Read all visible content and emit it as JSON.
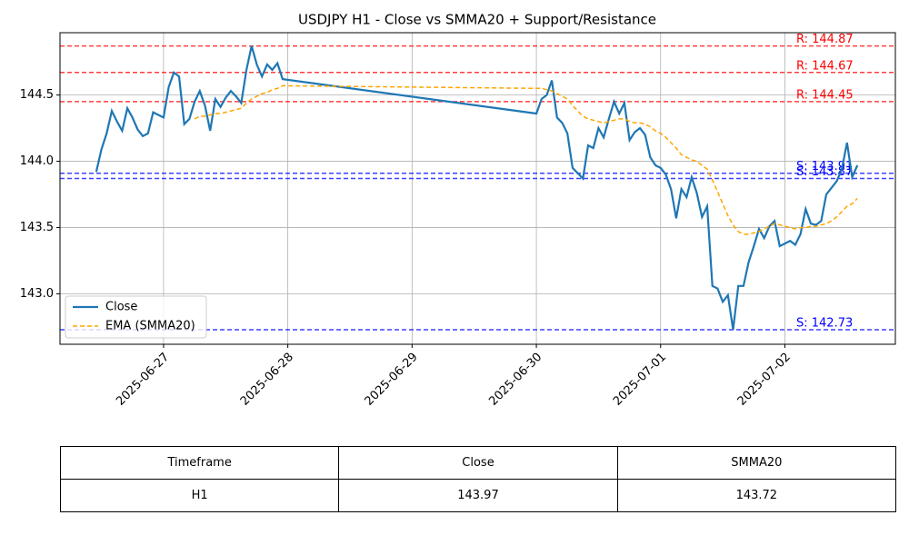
{
  "chart_data": {
    "type": "line",
    "title": "USDJPY H1 - Close vs SMMA20 + Support/Resistance",
    "x": [
      "2025-06-26T11:00",
      "2025-06-26T12:00",
      "2025-06-26T13:00",
      "2025-06-26T14:00",
      "2025-06-26T15:00",
      "2025-06-26T16:00",
      "2025-06-26T17:00",
      "2025-06-26T18:00",
      "2025-06-26T19:00",
      "2025-06-26T20:00",
      "2025-06-26T21:00",
      "2025-06-26T22:00",
      "2025-06-26T23:00",
      "2025-06-27T00:00",
      "2025-06-27T01:00",
      "2025-06-27T02:00",
      "2025-06-27T03:00",
      "2025-06-27T04:00",
      "2025-06-27T05:00",
      "2025-06-27T06:00",
      "2025-06-27T07:00",
      "2025-06-27T08:00",
      "2025-06-27T09:00",
      "2025-06-27T10:00",
      "2025-06-27T11:00",
      "2025-06-27T12:00",
      "2025-06-27T13:00",
      "2025-06-27T14:00",
      "2025-06-27T15:00",
      "2025-06-27T16:00",
      "2025-06-27T17:00",
      "2025-06-27T18:00",
      "2025-06-27T19:00",
      "2025-06-27T20:00",
      "2025-06-27T21:00",
      "2025-06-27T22:00",
      "2025-06-27T23:00",
      "2025-06-30T00:00",
      "2025-06-30T01:00",
      "2025-06-30T02:00",
      "2025-06-30T03:00",
      "2025-06-30T04:00",
      "2025-06-30T05:00",
      "2025-06-30T06:00",
      "2025-06-30T07:00",
      "2025-06-30T08:00",
      "2025-06-30T09:00",
      "2025-06-30T10:00",
      "2025-06-30T11:00",
      "2025-06-30T12:00",
      "2025-06-30T13:00",
      "2025-06-30T14:00",
      "2025-06-30T15:00",
      "2025-06-30T16:00",
      "2025-06-30T17:00",
      "2025-06-30T18:00",
      "2025-06-30T19:00",
      "2025-06-30T20:00",
      "2025-06-30T21:00",
      "2025-06-30T22:00",
      "2025-06-30T23:00",
      "2025-07-01T00:00",
      "2025-07-01T01:00",
      "2025-07-01T02:00",
      "2025-07-01T03:00",
      "2025-07-01T04:00",
      "2025-07-01T05:00",
      "2025-07-01T06:00",
      "2025-07-01T07:00",
      "2025-07-01T08:00",
      "2025-07-01T09:00",
      "2025-07-01T10:00",
      "2025-07-01T11:00",
      "2025-07-01T12:00",
      "2025-07-01T13:00",
      "2025-07-01T14:00",
      "2025-07-01T15:00",
      "2025-07-01T16:00",
      "2025-07-01T17:00",
      "2025-07-01T18:00",
      "2025-07-01T19:00",
      "2025-07-01T20:00",
      "2025-07-01T21:00",
      "2025-07-01T22:00",
      "2025-07-01T23:00",
      "2025-07-02T00:00",
      "2025-07-02T01:00",
      "2025-07-02T02:00",
      "2025-07-02T03:00",
      "2025-07-02T04:00",
      "2025-07-02T05:00",
      "2025-07-02T06:00",
      "2025-07-02T07:00",
      "2025-07-02T08:00",
      "2025-07-02T09:00",
      "2025-07-02T10:00",
      "2025-07-02T11:00",
      "2025-07-02T12:00",
      "2025-07-02T13:00",
      "2025-07-02T14:00"
    ],
    "series": [
      {
        "name": "Close",
        "color": "#1f77b4",
        "dash": false,
        "values": [
          143.92,
          144.09,
          144.21,
          144.38,
          144.3,
          144.23,
          144.4,
          144.33,
          144.24,
          144.19,
          144.21,
          144.37,
          144.35,
          144.33,
          144.56,
          144.67,
          144.64,
          144.28,
          144.32,
          144.45,
          144.53,
          144.42,
          144.23,
          144.47,
          144.41,
          144.48,
          144.53,
          144.49,
          144.44,
          144.69,
          144.87,
          144.73,
          144.64,
          144.73,
          144.69,
          144.74,
          144.62,
          144.36,
          144.47,
          144.5,
          144.61,
          144.33,
          144.29,
          144.21,
          143.95,
          143.91,
          143.87,
          144.12,
          144.1,
          144.25,
          144.18,
          144.32,
          144.45,
          144.36,
          144.44,
          144.16,
          144.22,
          144.25,
          144.2,
          144.03,
          143.97,
          143.95,
          143.9,
          143.79,
          143.57,
          143.79,
          143.73,
          143.88,
          143.76,
          143.58,
          143.66,
          143.06,
          143.04,
          142.94,
          142.99,
          142.73,
          143.06,
          143.06,
          143.24,
          143.36,
          143.49,
          143.42,
          143.51,
          143.55,
          143.36,
          143.38,
          143.4,
          143.37,
          143.45,
          143.64,
          143.53,
          143.52,
          143.55,
          143.75,
          143.8,
          143.85,
          143.94,
          144.14,
          143.88,
          143.97
        ]
      },
      {
        "name": "EMA (SMMA20)",
        "color": "#ffa500",
        "dash": true,
        "values": [
          null,
          null,
          null,
          null,
          null,
          null,
          null,
          null,
          null,
          null,
          null,
          null,
          null,
          null,
          null,
          null,
          null,
          null,
          null,
          144.32,
          144.34,
          144.34,
          144.35,
          144.36,
          144.36,
          144.37,
          144.38,
          144.39,
          144.4,
          144.44,
          144.47,
          144.49,
          144.51,
          144.52,
          144.54,
          144.55,
          144.57,
          144.55,
          144.55,
          144.54,
          144.53,
          144.51,
          144.49,
          144.47,
          144.42,
          144.38,
          144.34,
          144.32,
          144.31,
          144.3,
          144.29,
          144.3,
          144.31,
          144.32,
          144.32,
          144.3,
          144.29,
          144.29,
          144.28,
          144.26,
          144.23,
          144.21,
          144.18,
          144.14,
          144.1,
          144.05,
          144.03,
          144.01,
          144.0,
          143.97,
          143.94,
          143.86,
          143.77,
          143.68,
          143.59,
          143.52,
          143.47,
          143.45,
          143.45,
          143.46,
          143.47,
          143.49,
          143.51,
          143.53,
          143.52,
          143.51,
          143.5,
          143.49,
          143.5,
          143.5,
          143.51,
          143.51,
          143.52,
          143.53,
          143.55,
          143.58,
          143.62,
          143.66,
          143.68,
          143.72
        ]
      }
    ],
    "levels": [
      {
        "label": "R: 144.87",
        "value": 144.87,
        "color": "#ff0000"
      },
      {
        "label": "R: 144.67",
        "value": 144.67,
        "color": "#ff0000"
      },
      {
        "label": "R: 144.45",
        "value": 144.45,
        "color": "#ff0000"
      },
      {
        "label": "S: 143.91",
        "value": 143.91,
        "color": "#0000ff"
      },
      {
        "label": "S: 143.87",
        "value": 143.87,
        "color": "#0000ff"
      },
      {
        "label": "S: 142.73",
        "value": 142.73,
        "color": "#0000ff"
      }
    ],
    "xlim": [
      "2025-06-26T04:00",
      "2025-07-02T21:20"
    ],
    "xticks": [
      "2025-06-27",
      "2025-06-28",
      "2025-06-29",
      "2025-06-30",
      "2025-07-01",
      "2025-07-02"
    ],
    "ylim": [
      142.62,
      144.97
    ],
    "yticks": [
      {
        "value": 143,
        "label": "143.0"
      },
      143.5,
      {
        "value": 144,
        "label": "144.0"
      },
      144.5
    ],
    "grid": true,
    "legend": "lower left"
  },
  "table": {
    "header": [
      "Timeframe",
      "Close",
      "SMMA20"
    ],
    "rows": [
      [
        "H1",
        "143.97",
        "143.72"
      ]
    ]
  }
}
